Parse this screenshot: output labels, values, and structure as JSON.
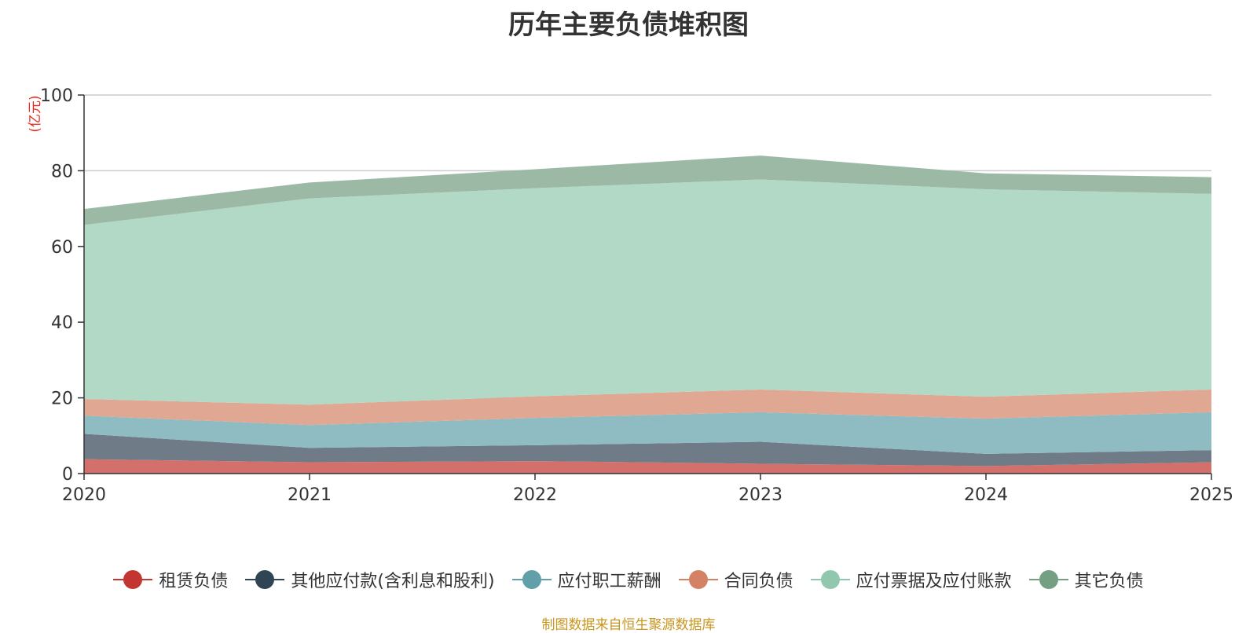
{
  "chart_data": {
    "type": "area",
    "stacked": true,
    "title": "历年主要负债堆积图",
    "unit_label": "(亿元)",
    "x": [
      "2020",
      "2021",
      "2022",
      "2023",
      "2024",
      "2025"
    ],
    "ylim": [
      0,
      100
    ],
    "yticks": [
      0,
      20,
      40,
      60,
      80,
      100
    ],
    "grid": true,
    "legend_position": "bottom",
    "series": [
      {
        "name": "租赁负债",
        "values": [
          3.8,
          3.0,
          3.3,
          2.6,
          2.0,
          3.0
        ],
        "color": "#c23531",
        "fill": "#d4706c"
      },
      {
        "name": "其他应付款(含利息和股利)",
        "values": [
          6.7,
          3.8,
          4.2,
          5.8,
          3.2,
          3.2
        ],
        "color": "#2f4554",
        "fill": "#6f7c87"
      },
      {
        "name": "应付职工薪酬",
        "values": [
          4.8,
          6.0,
          7.2,
          7.8,
          9.3,
          10.0
        ],
        "color": "#61a0a8",
        "fill": "#8fbcc2"
      },
      {
        "name": "合同负债",
        "values": [
          4.4,
          5.4,
          5.7,
          6.0,
          5.8,
          6.0
        ],
        "color": "#d48265",
        "fill": "#e0a793"
      },
      {
        "name": "应付票据及应付账款",
        "values": [
          46.0,
          54.5,
          55.0,
          55.5,
          54.8,
          51.7
        ],
        "color": "#91c7ae",
        "fill": "#b2d8c6"
      },
      {
        "name": "其它负债",
        "values": [
          4.2,
          4.2,
          5.0,
          6.3,
          4.2,
          4.4
        ],
        "color": "#749f83",
        "fill": "#9bb9a5"
      }
    ]
  },
  "source_note": "制图数据来自恒生聚源数据库"
}
